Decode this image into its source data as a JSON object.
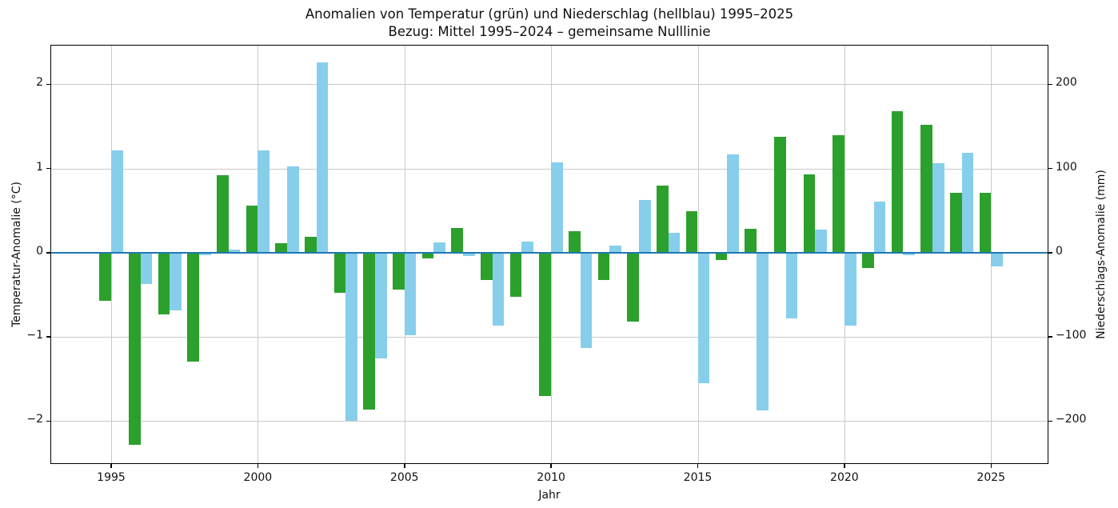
{
  "figure": {
    "title": "Anomalien von Temperatur (grün) und Niederschlag (hellblau) 1995–2025",
    "subtitle": "Bezug: Mittel 1995–2024 – gemeinsame Nulllinie"
  },
  "axes": {
    "x_label": "Jahr",
    "y_left_label": "Temperatur-Anomalie (°C)",
    "y_right_label": "Niederschlags-Anomalie (mm)",
    "x_tick_labels": [
      "1995",
      "2000",
      "2005",
      "2010",
      "2015",
      "2020",
      "2025"
    ],
    "y_left_tick_labels": [
      "2",
      "1",
      "0",
      "−1",
      "−2"
    ],
    "y_right_tick_labels": [
      "200",
      "100",
      "0",
      "−100",
      "−200"
    ]
  },
  "colors": {
    "temperature_bar": "#2ca02c",
    "precipitation_bar": "#87ceeb",
    "zero_line": "#1f77b4",
    "grid_line": "#c9c9c9",
    "spine": "#000000",
    "text": "#111111",
    "background": "#ffffff"
  },
  "chart_data": {
    "type": "bar",
    "title": "Anomalien von Temperatur (grün) und Niederschlag (hellblau) 1995–2025",
    "subtitle": "Bezug: Mittel 1995–2024 – gemeinsame Nulllinie",
    "xlabel": "Jahr",
    "ylabel_left": "Temperatur-Anomalie (°C)",
    "ylabel_right": "Niederschlags-Anomalie (mm)",
    "categories": [
      1995,
      1996,
      1997,
      1998,
      1999,
      2000,
      2001,
      2002,
      2003,
      2004,
      2005,
      2006,
      2007,
      2008,
      2009,
      2010,
      2011,
      2012,
      2013,
      2014,
      2015,
      2016,
      2017,
      2018,
      2019,
      2020,
      2021,
      2022,
      2023,
      2024,
      2025
    ],
    "series": [
      {
        "name": "Temperatur-Anomalie",
        "axis": "left",
        "unit": "°C",
        "color": "#2ca02c",
        "values": [
          -0.57,
          -2.28,
          -0.73,
          -1.29,
          0.92,
          0.56,
          0.11,
          0.19,
          -0.48,
          -1.86,
          -0.44,
          -0.07,
          0.29,
          -0.32,
          -0.52,
          -1.7,
          0.26,
          -0.32,
          -0.82,
          0.8,
          0.49,
          -0.09,
          0.28,
          1.38,
          0.93,
          1.4,
          -0.18,
          1.68,
          1.52,
          0.71,
          0.71
        ]
      },
      {
        "name": "Niederschlags-Anomalie",
        "axis": "right",
        "unit": "mm",
        "color": "#87ceeb",
        "values": [
          122,
          -37,
          -69,
          -3,
          4,
          122,
          103,
          226,
          -200,
          -126,
          -98,
          12,
          -4,
          -87,
          13,
          107,
          -113,
          8,
          63,
          24,
          -155,
          117,
          -187,
          -78,
          27,
          -87,
          61,
          -3,
          106,
          119,
          -16
        ]
      }
    ],
    "x_ticks": [
      1995,
      2000,
      2005,
      2010,
      2015,
      2020,
      2025
    ],
    "y_left_ticks": [
      2,
      1,
      0,
      -1,
      -2
    ],
    "y_right_ticks": [
      200,
      100,
      0,
      -100,
      -200
    ],
    "ylim_left": [
      -2.51,
      2.47
    ],
    "ylim_right": [
      -251,
      247
    ],
    "xlim": [
      1992.93,
      2026.96
    ],
    "bar_width_years": 0.4,
    "grid": true,
    "legend": "none",
    "zero_line": true
  }
}
